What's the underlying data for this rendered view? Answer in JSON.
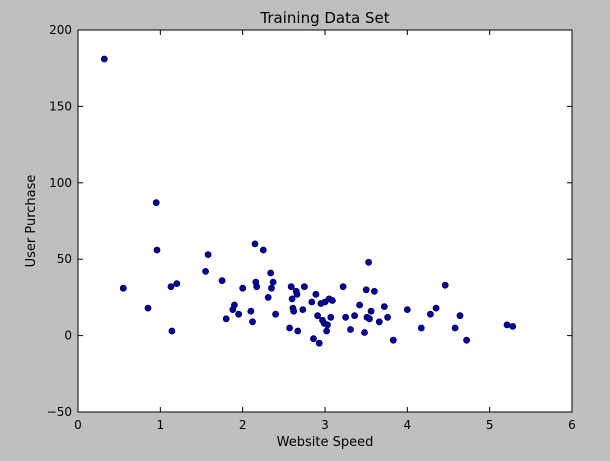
{
  "chart_data": {
    "type": "scatter",
    "title": "Training Data Set",
    "xlabel": "Website Speed",
    "ylabel": "User Purchase",
    "xlim": [
      0,
      6
    ],
    "ylim": [
      -50,
      200
    ],
    "xticks": [
      0,
      1,
      2,
      3,
      4,
      5,
      6
    ],
    "yticks": [
      -50,
      0,
      50,
      100,
      150,
      200
    ],
    "ytick_labels": [
      "−50",
      "0",
      "50",
      "100",
      "150",
      "200"
    ],
    "grid": false,
    "colors": {
      "marker_fill": "#0000a8",
      "marker_edge": "#000033",
      "axes_bg": "#ffffff",
      "figure_bg": "#bfbfbf"
    },
    "series": [
      {
        "x": [
          0.32,
          0.55,
          0.85,
          0.95,
          0.96,
          1.13,
          1.14,
          1.2,
          1.55,
          1.58,
          1.75,
          1.8,
          1.88,
          1.9,
          1.95,
          2.0,
          2.1,
          2.12,
          2.15,
          2.16,
          2.17,
          2.25,
          2.31,
          2.34,
          2.35,
          2.37,
          2.4,
          2.57,
          2.59,
          2.6,
          2.61,
          2.62,
          2.65,
          2.66,
          2.67,
          2.73,
          2.75,
          2.84,
          2.86,
          2.89,
          2.91,
          2.93,
          2.95,
          2.97,
          2.99,
          3.0,
          3.02,
          3.03,
          3.05,
          3.07,
          3.09,
          3.22,
          3.25,
          3.31,
          3.36,
          3.42,
          3.48,
          3.5,
          3.51,
          3.53,
          3.54,
          3.56,
          3.6,
          3.66,
          3.72,
          3.76,
          3.83,
          4.0,
          4.17,
          4.28,
          4.35,
          4.46,
          4.58,
          4.64,
          4.72,
          5.21,
          5.28
        ],
        "y": [
          181,
          31,
          18,
          87,
          56,
          32,
          3,
          34,
          42,
          53,
          36,
          11,
          17,
          20,
          14,
          31,
          16,
          9,
          60,
          35,
          32,
          56,
          25,
          41,
          31,
          35,
          14,
          5,
          32,
          24,
          18,
          16,
          29,
          27,
          3,
          17,
          32,
          22,
          -2,
          27,
          13,
          -5,
          21,
          10,
          8,
          22,
          3,
          7,
          24,
          12,
          23,
          32,
          12,
          4,
          13,
          20,
          2,
          30,
          12,
          48,
          11,
          16,
          29,
          9,
          19,
          12,
          -3,
          17,
          5,
          14,
          18,
          33,
          5,
          13,
          -3,
          7,
          6
        ]
      }
    ]
  }
}
